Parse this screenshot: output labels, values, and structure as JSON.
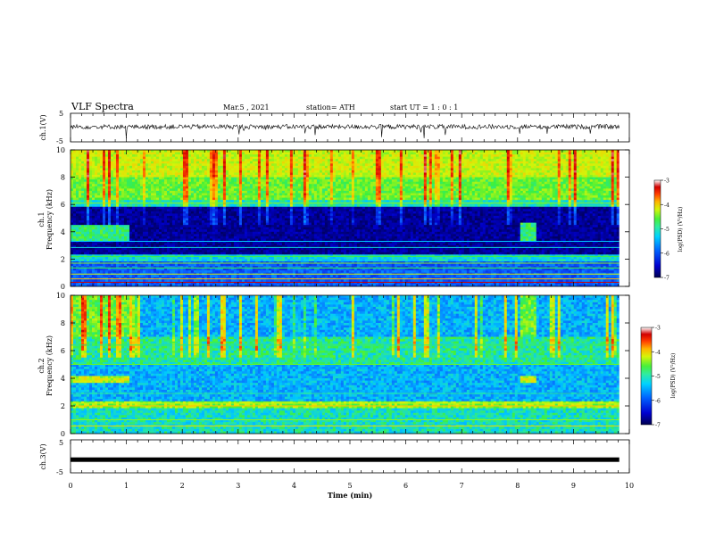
{
  "header": {
    "title": "VLF Spectra",
    "date": "Mar.5 , 2021",
    "station": "station= ATH",
    "start": "start UT = 1 : 0 : 1"
  },
  "colors": {
    "spectrogram": [
      "#00005a",
      "#0000c8",
      "#0a50ff",
      "#00c8ff",
      "#20e0a0",
      "#3cf03c",
      "#d2f50a",
      "#ffc800",
      "#ff5000",
      "#d20000",
      "#ffe6e6"
    ]
  },
  "chart_data": [
    {
      "type": "line",
      "panel": "ch1-waveform",
      "ylabel": "ch.1(V)",
      "ylim": [
        -5,
        5
      ],
      "yticks": [
        "5",
        "-5"
      ],
      "xlim": [
        0,
        10
      ],
      "baseline_value": 0.3,
      "description_values": "noisy waveform fluctuating around ~0.3 V with sharp negative spikes"
    },
    {
      "type": "heatmap",
      "panel": "ch1-spectrogram",
      "ylabel": "Frequency (kHz)",
      "ylabel_prefix": "ch.1",
      "ylim": [
        0,
        10
      ],
      "yticks": [
        "0",
        "2",
        "4",
        "6",
        "8",
        "10"
      ],
      "xlim": [
        0,
        10
      ],
      "colorbar": {
        "label": "log(PSD) (V²/Hz)",
        "range": [
          -7,
          -3
        ],
        "ticks": [
          "-3",
          "-4",
          "-5",
          "-6",
          "-7"
        ]
      },
      "bands": [
        {
          "f": [
            8.0,
            10.0
          ],
          "level": -4.6
        },
        {
          "f": [
            6.4,
            8.0
          ],
          "level": -4.9
        },
        {
          "f": [
            5.8,
            6.4
          ],
          "level": -5.3
        },
        {
          "f": [
            2.3,
            5.8
          ],
          "level": -6.7
        },
        {
          "f": [
            1.9,
            2.3
          ],
          "level": -5.4
        },
        {
          "f": [
            0.0,
            1.9
          ],
          "level": -6.0
        }
      ],
      "patches": [
        {
          "t": [
            0.0,
            1.05
          ],
          "f": [
            3.4,
            4.5
          ],
          "level": -5.1
        },
        {
          "t": [
            8.05,
            8.35
          ],
          "f": [
            3.3,
            4.6
          ],
          "level": -5.1
        }
      ],
      "quiet_interval_min": [
        1.05,
        8.05
      ]
    },
    {
      "type": "heatmap",
      "panel": "ch2-spectrogram",
      "ylabel": "Frequency (kHz)",
      "ylabel_prefix": "ch.2",
      "ylim": [
        0,
        10
      ],
      "yticks": [
        "0",
        "2",
        "4",
        "6",
        "8",
        "10"
      ],
      "xlim": [
        0,
        10
      ],
      "colorbar": {
        "label": "log(PSD) (V²/Hz)",
        "range": [
          -7,
          -3
        ],
        "ticks": [
          "-3",
          "-4",
          "-5",
          "-6",
          "-7"
        ]
      },
      "bands": [
        {
          "f": [
            7.0,
            10.0
          ],
          "level": -5.6
        },
        {
          "f": [
            5.0,
            7.0
          ],
          "level": -5.2
        },
        {
          "f": [
            2.3,
            5.0
          ],
          "level": -5.6
        },
        {
          "f": [
            1.9,
            2.3
          ],
          "level": -4.8
        },
        {
          "f": [
            0.0,
            1.9
          ],
          "level": -5.3
        }
      ],
      "patches": [
        {
          "t": [
            0.0,
            1.05
          ],
          "f": [
            3.6,
            4.2
          ],
          "level": -4.6
        },
        {
          "t": [
            8.05,
            8.35
          ],
          "f": [
            3.6,
            4.2
          ],
          "level": -4.6
        },
        {
          "t": [
            0.0,
            1.05
          ],
          "f": [
            7.0,
            10.0
          ],
          "level": -4.9
        },
        {
          "t": [
            8.05,
            8.35
          ],
          "f": [
            7.0,
            10.0
          ],
          "level": -4.9
        }
      ]
    },
    {
      "type": "line",
      "panel": "ch3-waveform",
      "ylabel": "ch.3(V)",
      "ylim": [
        -5,
        5
      ],
      "yticks": [
        "5",
        "-5"
      ],
      "xlim": [
        0,
        10
      ],
      "baseline_value": -1.0,
      "description_values": "flat thick line at about -1 V"
    }
  ],
  "xaxis": {
    "label": "Time (min)",
    "ticks": [
      "0",
      "1",
      "2",
      "3",
      "4",
      "5",
      "6",
      "7",
      "8",
      "9",
      "10"
    ],
    "range": [
      0,
      10
    ]
  }
}
